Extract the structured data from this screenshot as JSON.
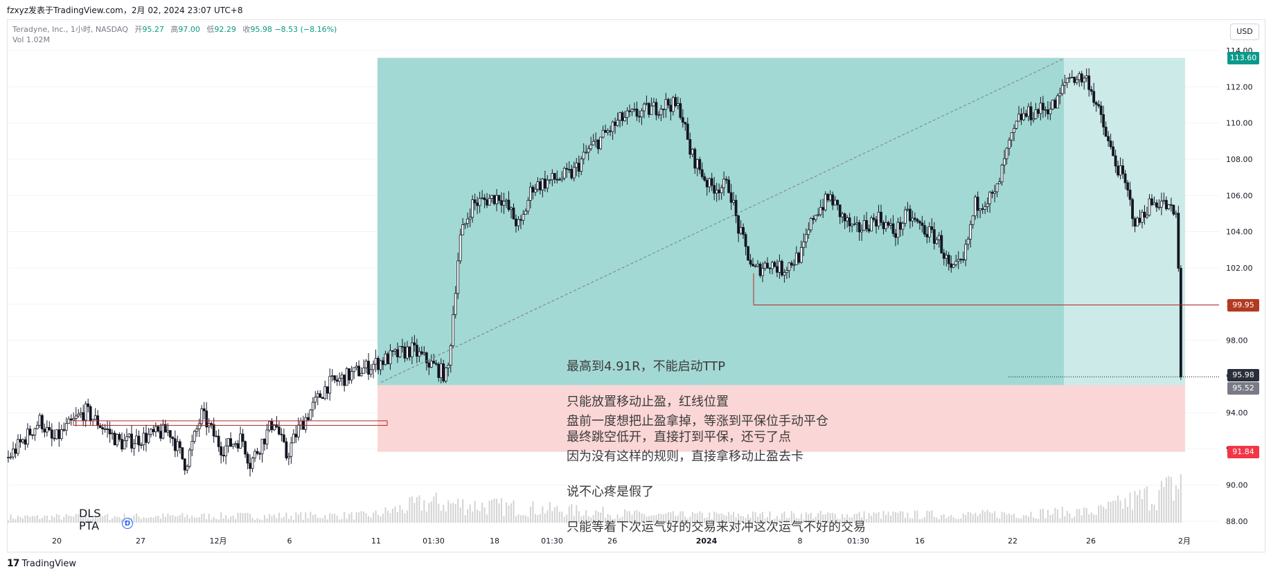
{
  "header": {
    "publisher": "fzxyz发表于TradingView.com，2月 02, 2024 23:07 UTC+8",
    "symbol": "Teradyne, Inc., 1小时, NASDAQ",
    "open_label": "开",
    "open": "95.27",
    "high_label": "高",
    "high": "97.00",
    "low_label": "低",
    "low": "92.29",
    "close_label": "收",
    "close": "95.98",
    "change": "−8.53 (−8.16%)",
    "vol_label": "Vol",
    "vol": "1.02M",
    "currency": "USD"
  },
  "footer": {
    "brand": "TradingView"
  },
  "indicators": {
    "line1": "DLS",
    "line2": "PTA",
    "badge": "D"
  },
  "colors": {
    "profit_zone": "#a3d9d4",
    "profit_zone_extended": "#cceae8",
    "loss_zone": "#fbd6d6",
    "up_candle": "#ffffff",
    "down_candle": "#131722",
    "stop_line": "#b22222",
    "target_label": "#0b9a8a",
    "stop_label": "#b33a1f",
    "loss_label": "#f23645",
    "volume": "#d3d3d3"
  },
  "notes": {
    "profit": [
      "最高到4.91R，不能启动TTP",
      "只能放置移动止盈，红线位置",
      "最终跳空低开，直接打到平保，还亏了点"
    ],
    "loss": [
      "盘前一度想把止盈拿掉，等涨到平保位手动平仓",
      "因为没有这样的规则，直接拿移动止盈去卡",
      "说不心疼是假了",
      "只能等着下次运气好的交易来对冲这次运气不好的交易"
    ]
  },
  "chart_data": {
    "type": "candlestick",
    "title": "Teradyne, Inc., 1小时, NASDAQ",
    "xlabel": "",
    "ylabel": "",
    "ylim": [
      87.5,
      114.5
    ],
    "y_ticks": [
      "88.00",
      "90.00",
      "92.00",
      "94.00",
      "96.00",
      "98.00",
      "100.00",
      "102.00",
      "104.00",
      "106.00",
      "108.00",
      "110.00",
      "112.00",
      "114.00"
    ],
    "x_ticks": [
      "20",
      "27",
      "12月",
      "6",
      "11",
      "01:30",
      "18",
      "01:30",
      "26",
      "2024",
      "8",
      "01:30",
      "16",
      "22",
      "26",
      "2月"
    ],
    "price_labels": {
      "target": "113.60",
      "trailing_stop": "99.95",
      "last": "95.98",
      "entry": "95.52",
      "stop": "91.84"
    },
    "position": {
      "side": "long",
      "entry": 95.52,
      "target": 113.6,
      "stop": 91.84,
      "trailing_stop": 99.95
    },
    "resistance_box": [
      93.55,
      93.3
    ],
    "segments": [
      [
        0,
        91.5
      ],
      [
        40,
        93.6
      ],
      [
        55,
        92.4
      ],
      [
        95,
        94.1
      ],
      [
        140,
        92.3
      ],
      [
        200,
        93.0
      ],
      [
        220,
        91.1
      ],
      [
        240,
        93.9
      ],
      [
        265,
        92.0
      ],
      [
        290,
        92.6
      ],
      [
        300,
        91.2
      ],
      [
        330,
        93.6
      ],
      [
        345,
        91.6
      ],
      [
        360,
        93.1
      ],
      [
        395,
        95.5
      ],
      [
        460,
        96.8
      ],
      [
        500,
        97.5
      ],
      [
        545,
        96.0
      ],
      [
        560,
        103.5
      ],
      [
        575,
        105.5
      ],
      [
        610,
        106.0
      ],
      [
        635,
        104.2
      ],
      [
        650,
        106.5
      ],
      [
        700,
        107.2
      ],
      [
        720,
        108.5
      ],
      [
        760,
        110.2
      ],
      [
        820,
        111.1
      ],
      [
        835,
        110.7
      ],
      [
        845,
        108.5
      ],
      [
        870,
        106.5
      ],
      [
        895,
        106.5
      ],
      [
        905,
        104.3
      ],
      [
        925,
        101.8
      ],
      [
        945,
        102.3
      ],
      [
        960,
        101.9
      ],
      [
        985,
        102.8
      ],
      [
        1000,
        105.0
      ],
      [
        1020,
        105.9
      ],
      [
        1035,
        104.8
      ],
      [
        1050,
        104.0
      ],
      [
        1080,
        104.8
      ],
      [
        1100,
        103.9
      ],
      [
        1115,
        104.9
      ],
      [
        1140,
        104.0
      ],
      [
        1155,
        103.5
      ],
      [
        1170,
        101.7
      ],
      [
        1185,
        102.3
      ],
      [
        1200,
        105.5
      ],
      [
        1225,
        106.0
      ],
      [
        1240,
        108.5
      ],
      [
        1255,
        110.3
      ],
      [
        1285,
        110.8
      ],
      [
        1300,
        111.0
      ],
      [
        1315,
        112.6
      ],
      [
        1340,
        112.4
      ],
      [
        1355,
        110.3
      ],
      [
        1370,
        108.2
      ],
      [
        1385,
        106.7
      ],
      [
        1400,
        104.3
      ],
      [
        1415,
        105.5
      ],
      [
        1430,
        105.7
      ],
      [
        1450,
        104.8
      ],
      [
        1456,
        95.98
      ]
    ],
    "volume_segments": [
      [
        0,
        0.15
      ],
      [
        450,
        0.2
      ],
      [
        520,
        0.55
      ],
      [
        800,
        0.2
      ],
      [
        1200,
        0.22
      ],
      [
        1350,
        0.3
      ],
      [
        1456,
        1.0
      ]
    ]
  }
}
